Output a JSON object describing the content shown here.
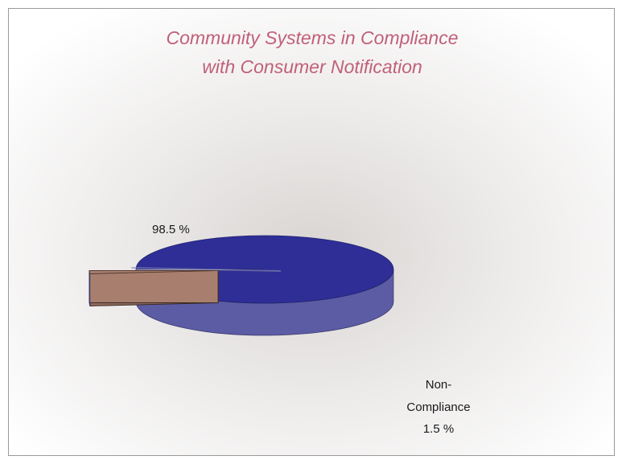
{
  "chart_data": {
    "type": "pie",
    "style": "3d",
    "title": "Community Systems in Compliance",
    "subtitle": "with Consumer Notification",
    "slices": [
      {
        "category": "",
        "value": 98.5,
        "value_label": "98.5 %",
        "top_color": "#2e2e96",
        "side_color": "#5c5ca4"
      },
      {
        "category": "Non-\nCompliance",
        "value": 1.5,
        "value_label": "1.5 %",
        "exploded": true,
        "top_color": "#a87e6e",
        "side_color": "#8e6a5e"
      }
    ],
    "title_color": "#c0607a",
    "label_color": "#1a1a1a",
    "legend": "none",
    "grid": false
  }
}
